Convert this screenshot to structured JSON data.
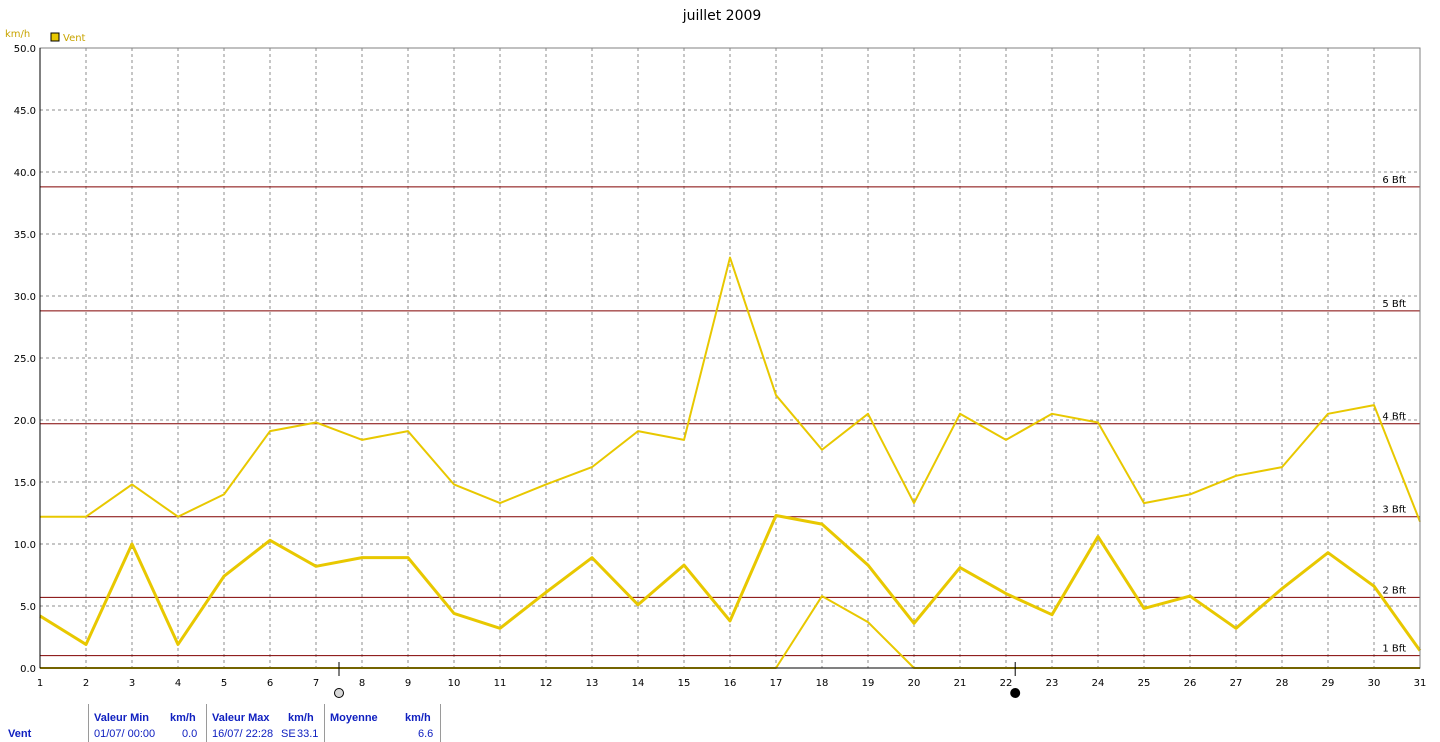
{
  "chart_data": {
    "type": "line",
    "title": "juillet 2009",
    "ylabel": "km/h",
    "ylim": [
      0,
      50
    ],
    "yticks": [
      "0.0",
      "5.0",
      "10.0",
      "15.0",
      "20.0",
      "25.0",
      "30.0",
      "35.0",
      "40.0",
      "45.0",
      "50.0"
    ],
    "ytick_values": [
      0,
      5,
      10,
      15,
      20,
      25,
      30,
      35,
      40,
      45,
      50
    ],
    "x": [
      1,
      2,
      3,
      4,
      5,
      6,
      7,
      8,
      9,
      10,
      11,
      12,
      13,
      14,
      15,
      16,
      17,
      18,
      19,
      20,
      21,
      22,
      23,
      24,
      25,
      26,
      27,
      28,
      29,
      30,
      31
    ],
    "xlim": [
      1,
      31
    ],
    "grid": true,
    "legend": {
      "label": "Vent",
      "placement": "top-left",
      "color": "#e8c800"
    },
    "series": [
      {
        "name": "Vent",
        "role": "max",
        "color": "#e8c800",
        "values": [
          12.2,
          12.2,
          14.8,
          12.2,
          14.0,
          19.1,
          19.8,
          18.4,
          19.1,
          14.8,
          13.3,
          14.8,
          16.2,
          19.1,
          18.4,
          33.1,
          22.0,
          17.6,
          20.5,
          13.3,
          20.5,
          18.4,
          20.5,
          19.8,
          13.3,
          14.0,
          15.5,
          16.2,
          20.5,
          21.2,
          11.8
        ]
      },
      {
        "name": "Vent",
        "role": "mean",
        "color": "#e8c800",
        "values": [
          4.2,
          1.9,
          10.0,
          1.9,
          7.4,
          10.3,
          8.2,
          8.9,
          8.9,
          4.4,
          3.2,
          6.1,
          8.9,
          5.1,
          8.3,
          3.8,
          12.3,
          11.6,
          8.3,
          3.6,
          8.1,
          6.0,
          4.3,
          10.6,
          4.8,
          5.8,
          3.2,
          6.4,
          9.3,
          6.6,
          1.4
        ]
      },
      {
        "name": "Vent",
        "role": "min",
        "color": "#e8c800",
        "values": [
          0,
          0,
          0,
          0,
          0,
          0,
          0,
          0,
          0,
          0,
          0,
          0,
          0,
          0,
          0,
          0,
          0,
          5.8,
          3.7,
          0,
          0,
          0,
          0,
          0,
          0,
          0,
          0,
          0,
          0,
          0,
          0
        ]
      }
    ],
    "reference_lines": [
      {
        "label": "1 Bft",
        "value": 1.0
      },
      {
        "label": "2 Bft",
        "value": 5.7
      },
      {
        "label": "3 Bft",
        "value": 12.2
      },
      {
        "label": "4 Bft",
        "value": 19.7
      },
      {
        "label": "5 Bft",
        "value": 28.8
      },
      {
        "label": "6 Bft",
        "value": 38.8
      }
    ],
    "reference_color": "#800000",
    "moon_markers": [
      {
        "x": 7.5,
        "phase": "full-moon-icon"
      },
      {
        "x": 22.2,
        "phase": "new-moon-icon"
      }
    ]
  },
  "stats": {
    "row_label": "Vent",
    "min_header": "Valeur Min",
    "min_unit": "km/h",
    "min_date": "01/07/  00:00",
    "min_value": "0.0",
    "max_header": "Valeur Max",
    "max_unit": "km/h",
    "max_date": "16/07/  22:28",
    "max_dir": "SE",
    "max_value": "33.1",
    "mean_header": "Moyenne",
    "mean_unit": "km/h",
    "mean_value": "6.6"
  }
}
